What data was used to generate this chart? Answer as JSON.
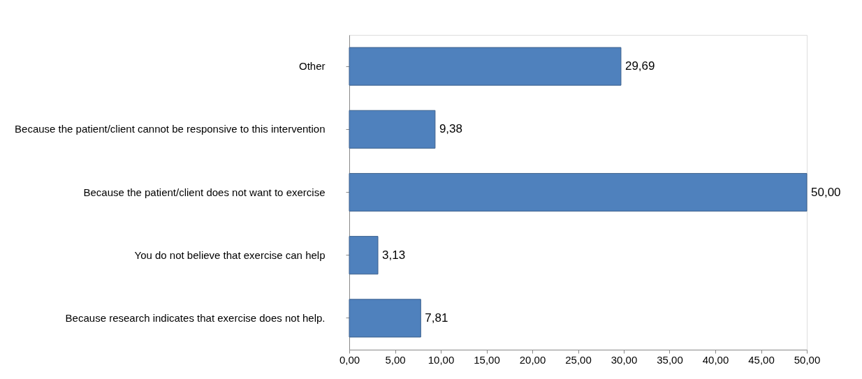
{
  "chart_data": {
    "type": "bar",
    "orientation": "horizontal",
    "categories": [
      "Other",
      "Because the patient/client cannot be responsive to this intervention",
      "Because the patient/client does not want to exercise",
      "You do not believe that exercise can help",
      "Because research indicates that exercise does not help."
    ],
    "values": [
      29.69,
      9.38,
      50.0,
      3.13,
      7.81
    ],
    "value_labels": [
      "29,69",
      "9,38",
      "50,00",
      "3,13",
      "7,81"
    ],
    "color": "#4f81bd",
    "xlim": [
      0,
      50
    ],
    "xticks": [
      {
        "value": 0,
        "label": "0,00"
      },
      {
        "value": 5,
        "label": "5,00"
      },
      {
        "value": 10,
        "label": "10,00"
      },
      {
        "value": 15,
        "label": "15,00"
      },
      {
        "value": 20,
        "label": "20,00"
      },
      {
        "value": 25,
        "label": "25,00"
      },
      {
        "value": 30,
        "label": "30,00"
      },
      {
        "value": 35,
        "label": "35,00"
      },
      {
        "value": 40,
        "label": "40,00"
      },
      {
        "value": 45,
        "label": "45,00"
      },
      {
        "value": 50,
        "label": "50,00"
      }
    ],
    "grid": false
  }
}
